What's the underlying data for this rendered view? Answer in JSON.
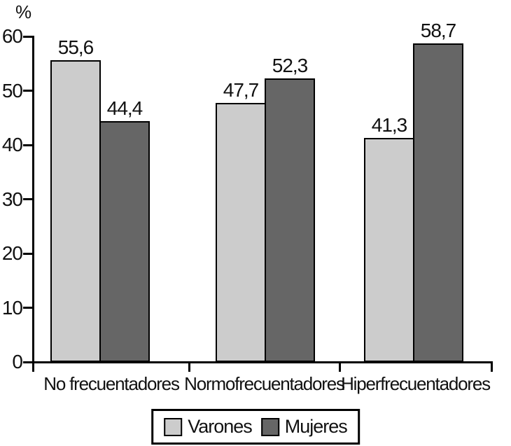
{
  "chart_data": {
    "type": "bar",
    "title": "",
    "xlabel": "",
    "ylabel": "%",
    "categories": [
      "No frecuentadores",
      "Normofrecuentadores",
      "Hiperfrecuentadores"
    ],
    "series": [
      {
        "name": "Varones",
        "color": "#cccccc",
        "values": [
          55.6,
          47.7,
          41.3
        ]
      },
      {
        "name": "Mujeres",
        "color": "#666666",
        "values": [
          44.4,
          52.3,
          58.7
        ]
      }
    ],
    "value_labels": [
      [
        "55,6",
        "47,7",
        "41,3"
      ],
      [
        "44,4",
        "52,3",
        "58,7"
      ]
    ],
    "ylim": [
      0,
      60
    ],
    "yticks": [
      0,
      10,
      20,
      30,
      40,
      50,
      60
    ],
    "decimal_separator": ",",
    "grid": false,
    "legend_position": "bottom",
    "bar_edge_color": "#000000",
    "axis_color": "#000000"
  }
}
